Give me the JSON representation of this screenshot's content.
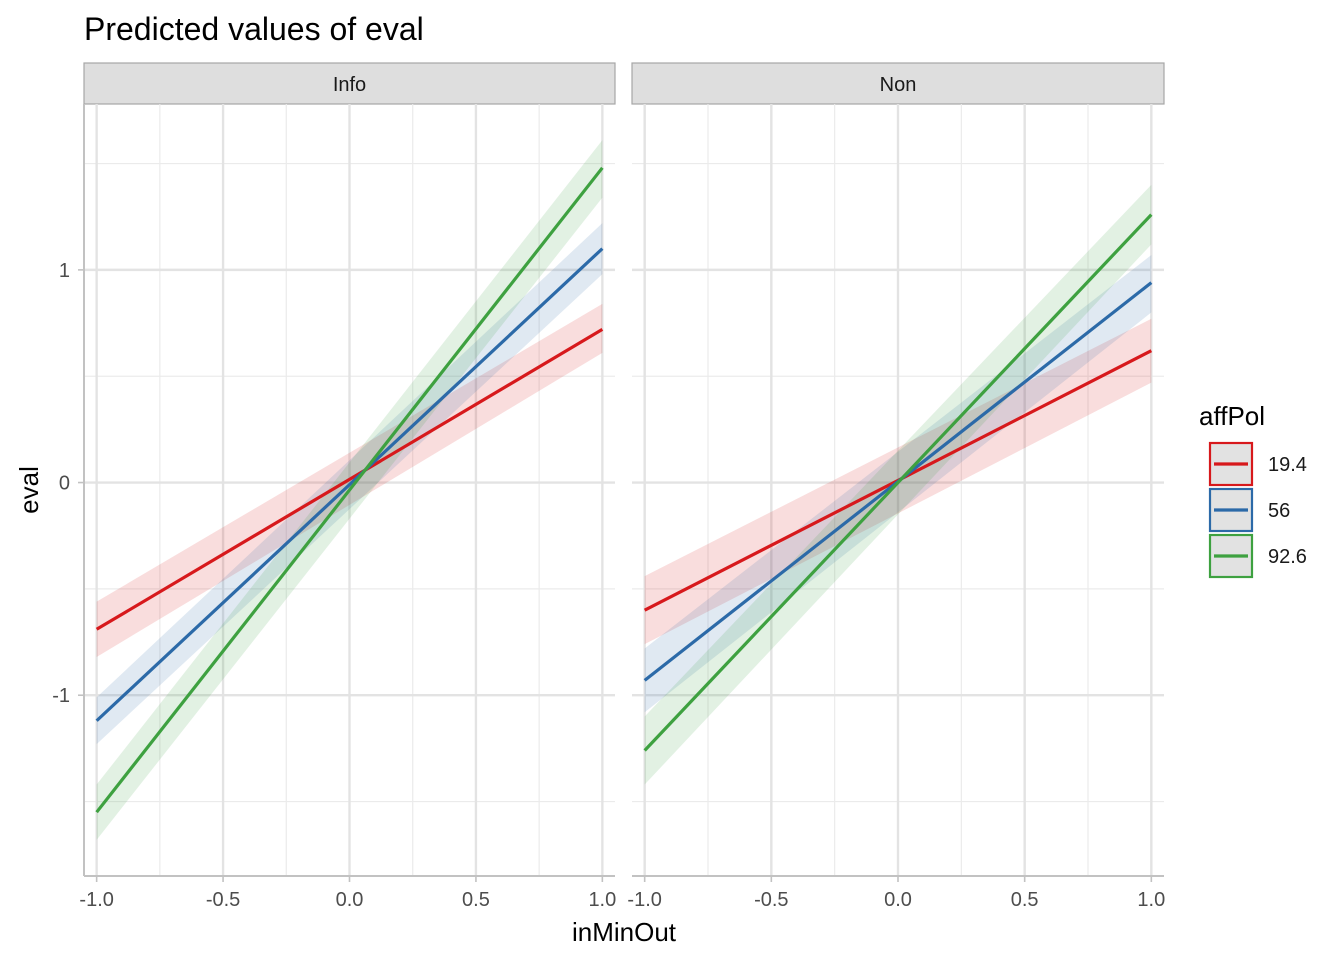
{
  "chart_data": {
    "type": "line",
    "title": "Predicted values of eval",
    "xlabel": "inMinOut",
    "ylabel": "eval",
    "xlim": [
      -1.05,
      1.05
    ],
    "ylim": [
      -1.85,
      1.78
    ],
    "x_ticks": [
      -1.0,
      -0.5,
      0.0,
      0.5,
      1.0
    ],
    "x_tick_labels": [
      "-1.0",
      "-0.5",
      "0.0",
      "0.5",
      "1.0"
    ],
    "x_minor": [
      -0.75,
      -0.25,
      0.25,
      0.75
    ],
    "y_ticks": [
      -1,
      0,
      1
    ],
    "y_tick_labels": [
      "-1",
      "0",
      "1"
    ],
    "y_minor": [
      -1.5,
      -0.5,
      0.5,
      1.5
    ],
    "legend": {
      "title": "affPol",
      "position": "right",
      "entries": [
        "19.4",
        "56",
        "92.6"
      ],
      "colors": [
        "#d7191c",
        "#2c6aa8",
        "#3ea140"
      ]
    },
    "facets": [
      {
        "label": "Info",
        "series": [
          {
            "name": "19.4",
            "x": [
              -1.0,
              1.0
            ],
            "y": [
              -0.69,
              0.72
            ],
            "ci_low": [
              -0.82,
              0.61
            ],
            "ci_high": [
              -0.56,
              0.84
            ]
          },
          {
            "name": "56",
            "x": [
              -1.0,
              1.0
            ],
            "y": [
              -1.12,
              1.1
            ],
            "ci_low": [
              -1.23,
              0.98
            ],
            "ci_high": [
              -1.01,
              1.22
            ]
          },
          {
            "name": "92.6",
            "x": [
              -1.0,
              1.0
            ],
            "y": [
              -1.55,
              1.48
            ],
            "ci_low": [
              -1.68,
              1.34
            ],
            "ci_high": [
              -1.42,
              1.61
            ]
          }
        ]
      },
      {
        "label": "Non",
        "series": [
          {
            "name": "19.4",
            "x": [
              -1.0,
              1.0
            ],
            "y": [
              -0.6,
              0.62
            ],
            "ci_low": [
              -0.76,
              0.47
            ],
            "ci_high": [
              -0.44,
              0.77
            ]
          },
          {
            "name": "56",
            "x": [
              -1.0,
              1.0
            ],
            "y": [
              -0.93,
              0.94
            ],
            "ci_low": [
              -1.08,
              0.8
            ],
            "ci_high": [
              -0.78,
              1.07
            ]
          },
          {
            "name": "92.6",
            "x": [
              -1.0,
              1.0
            ],
            "y": [
              -1.26,
              1.26
            ],
            "ci_low": [
              -1.42,
              1.12
            ],
            "ci_high": [
              -1.1,
              1.4
            ]
          }
        ]
      }
    ]
  }
}
